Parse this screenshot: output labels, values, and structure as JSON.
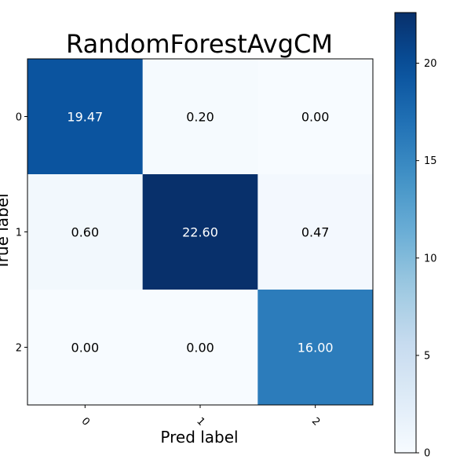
{
  "chart_data": {
    "type": "heatmap",
    "title": "RandomForestAvgCM",
    "xlabel": "Pred label",
    "ylabel": "True label",
    "x_tick_labels": [
      "0",
      "1",
      "2"
    ],
    "y_tick_labels": [
      "0",
      "1",
      "2"
    ],
    "matrix": [
      [
        19.47,
        0.2,
        0.0
      ],
      [
        0.6,
        22.6,
        0.47
      ],
      [
        0.0,
        0.0,
        16.0
      ]
    ],
    "cell_labels": [
      [
        "19.47",
        "0.20",
        "0.00"
      ],
      [
        "0.60",
        "22.60",
        "0.47"
      ],
      [
        "0.00",
        "0.00",
        "16.00"
      ]
    ],
    "colormap": "Blues",
    "color_range": [
      0,
      22.6
    ],
    "colorbar_ticks": [
      0,
      5,
      10,
      15,
      20
    ],
    "colorbar_tick_labels": [
      "0",
      "5",
      "10",
      "15",
      "20"
    ],
    "x_tick_rotation_deg": 45,
    "grid": false
  }
}
